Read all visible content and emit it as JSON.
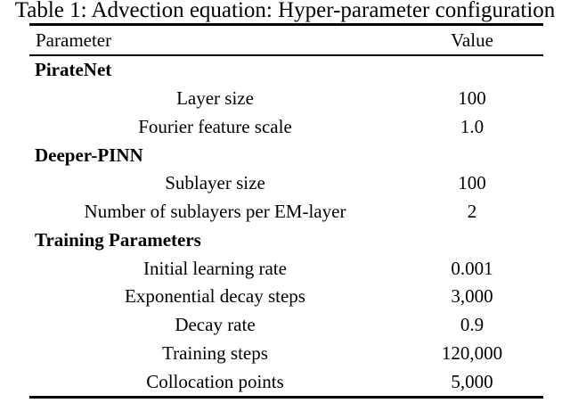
{
  "caption": "Table 1: Advection equation: Hyper-parameter configuration",
  "table": {
    "headers": {
      "parameter": "Parameter",
      "value": "Value"
    },
    "rows": [
      {
        "type": "section",
        "label": "PirateNet",
        "value": ""
      },
      {
        "type": "data",
        "label": "Layer size",
        "value": "100"
      },
      {
        "type": "data",
        "label": "Fourier feature scale",
        "value": "1.0"
      },
      {
        "type": "section",
        "label": "Deeper-PINN",
        "value": ""
      },
      {
        "type": "data",
        "label": "Sublayer size",
        "value": "100"
      },
      {
        "type": "data",
        "label": "Number of sublayers per EM-layer",
        "value": "2"
      },
      {
        "type": "section",
        "label": "Training Parameters",
        "value": ""
      },
      {
        "type": "data",
        "label": "Initial learning rate",
        "value": "0.001"
      },
      {
        "type": "data",
        "label": "Exponential decay steps",
        "value": "3,000"
      },
      {
        "type": "data",
        "label": "Decay rate",
        "value": "0.9"
      },
      {
        "type": "data",
        "label": "Training steps",
        "value": "120,000"
      },
      {
        "type": "data",
        "label": "Collocation points",
        "value": "5,000"
      }
    ]
  }
}
